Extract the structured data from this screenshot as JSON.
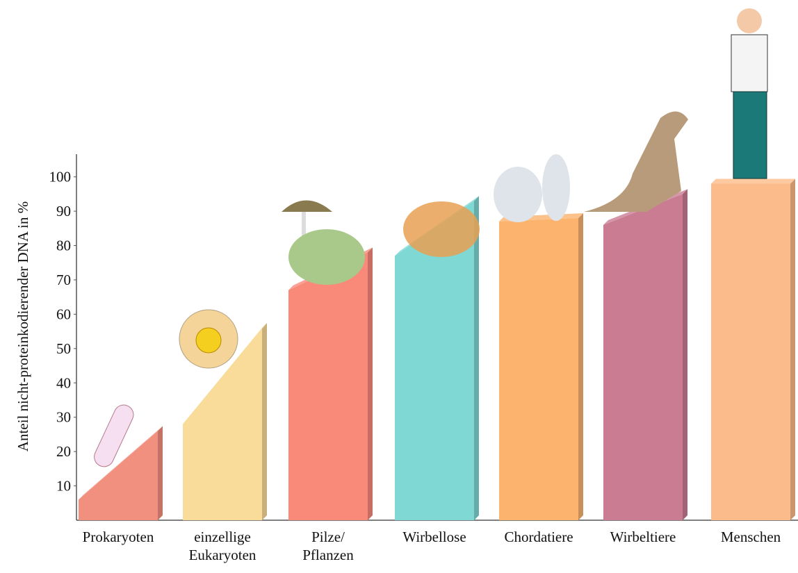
{
  "chart_data": {
    "type": "bar",
    "y_label": "Anteil nicht-proteinkodierender DNA in %",
    "categories": [
      [
        "Prokaryoten"
      ],
      [
        "einzellige",
        "Eukaryoten"
      ],
      [
        "Pilze/",
        "Pflanzen"
      ],
      [
        "Wirbellose"
      ],
      [
        "Chordatiere"
      ],
      [
        "Wirbeltiere"
      ],
      [
        "Menschen"
      ]
    ],
    "values": [
      [
        6,
        26
      ],
      [
        28,
        56
      ],
      [
        67,
        78
      ],
      [
        77,
        93
      ],
      [
        87,
        88
      ],
      [
        86,
        95
      ],
      [
        98,
        98
      ]
    ],
    "colors": [
      "#f2907f",
      "#f9dc9a",
      "#f98a7a",
      "#7fd8d4",
      "#fbb36e",
      "#c97c92",
      "#fcbb8a"
    ],
    "ylim": [
      0,
      106
    ],
    "yticks": [
      10,
      20,
      30,
      40,
      50,
      60,
      70,
      80,
      90,
      100
    ]
  }
}
